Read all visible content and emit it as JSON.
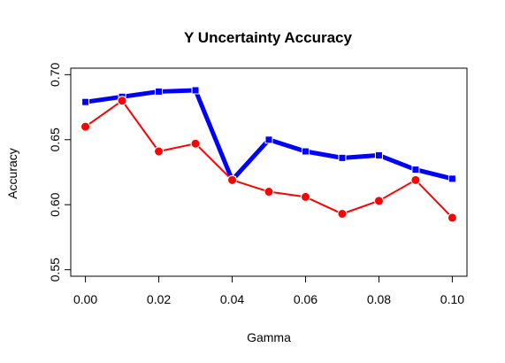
{
  "chart_data": {
    "type": "line",
    "title": "Y Uncertainty Accuracy",
    "xlabel": "Gamma",
    "ylabel": "Accuracy",
    "xlim": [
      -0.004,
      0.104
    ],
    "ylim": [
      0.545,
      0.705
    ],
    "x_ticks": [
      "0.00",
      "0.02",
      "0.04",
      "0.06",
      "0.08",
      "0.10"
    ],
    "y_ticks": [
      "0.55",
      "0.60",
      "0.65",
      "0.70"
    ],
    "x": [
      0.0,
      0.01,
      0.02,
      0.03,
      0.04,
      0.05,
      0.06,
      0.07,
      0.08,
      0.09,
      0.1
    ],
    "grid": false,
    "series": [
      {
        "color": "#0000ff",
        "marker": "square",
        "line_style": "thick",
        "values": [
          0.679,
          0.683,
          0.687,
          0.688,
          0.619,
          0.65,
          0.641,
          0.636,
          0.638,
          0.627,
          0.62
        ]
      },
      {
        "color": "#ff0000",
        "marker": "circle",
        "line_style": "thin",
        "values": [
          0.66,
          0.68,
          0.641,
          0.647,
          0.619,
          0.61,
          0.606,
          0.593,
          0.603,
          0.619,
          0.59
        ]
      }
    ]
  }
}
